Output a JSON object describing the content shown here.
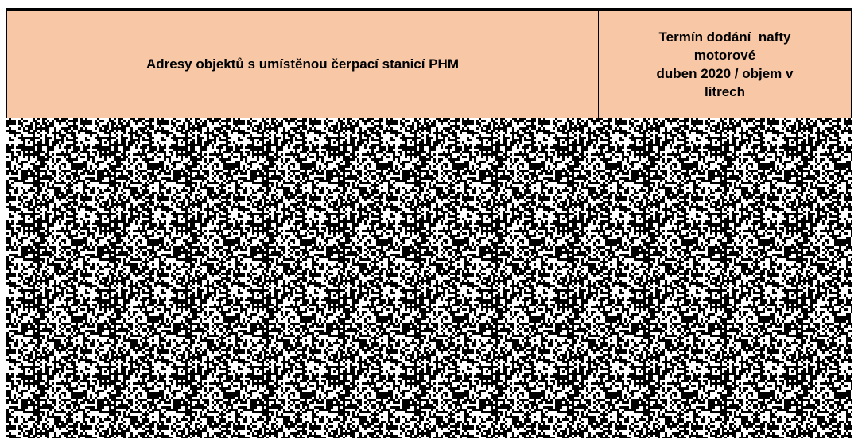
{
  "header": {
    "address_column": "Adresy objektů s umístěnou čerpací stanicí PHM",
    "delivery_column_lines": [
      "Termín dodání  nafty",
      "motorové",
      "duben 2020 / objem v",
      "litrech"
    ]
  }
}
